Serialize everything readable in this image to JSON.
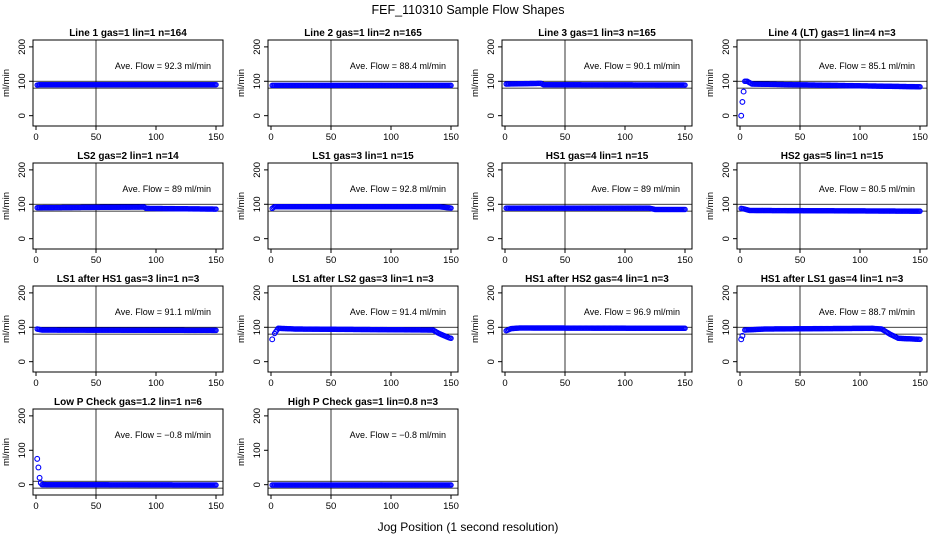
{
  "figure": {
    "title": "FEF_110310  Sample Flow Shapes",
    "xlabel": "Jog Position (1 second resolution)",
    "ylabel": "ml/min"
  },
  "chart_data": [
    {
      "type": "scatter",
      "title": "Line 1 gas=1 lin=1 n=164",
      "annotation": "Ave. Flow =  92.3  ml/min",
      "xlim": [
        0,
        150
      ],
      "ylim": [
        -30,
        220
      ],
      "xticks": [
        "0",
        "50",
        "100",
        "150"
      ],
      "yticks": [
        "0",
        "100",
        "200"
      ],
      "ref_lines_y": [
        80,
        100
      ],
      "ref_line_x": 50,
      "profile": [
        [
          1,
          89
        ],
        [
          3,
          90
        ],
        [
          150,
          90
        ]
      ]
    },
    {
      "type": "scatter",
      "title": "Line 2 gas=1 lin=2 n=165",
      "annotation": "Ave. Flow =  88.4  ml/min",
      "xlim": [
        0,
        150
      ],
      "ylim": [
        -30,
        220
      ],
      "xticks": [
        "0",
        "50",
        "100",
        "150"
      ],
      "yticks": [
        "0",
        "100",
        "200"
      ],
      "ref_lines_y": [
        80,
        100
      ],
      "ref_line_x": 50,
      "profile": [
        [
          1,
          88
        ],
        [
          150,
          88
        ]
      ]
    },
    {
      "type": "scatter",
      "title": "Line 3 gas=1 lin=3 n=165",
      "annotation": "Ave. Flow =  90.1  ml/min",
      "xlim": [
        0,
        150
      ],
      "ylim": [
        -30,
        220
      ],
      "xticks": [
        "0",
        "50",
        "100",
        "150"
      ],
      "yticks": [
        "0",
        "100",
        "200"
      ],
      "ref_lines_y": [
        80,
        100
      ],
      "ref_line_x": 50,
      "profile": [
        [
          1,
          92
        ],
        [
          30,
          94
        ],
        [
          32,
          90
        ],
        [
          150,
          89
        ]
      ]
    },
    {
      "type": "scatter",
      "title": "Line 4 (LT) gas=1 lin=4 n=3",
      "annotation": "Ave. Flow =  85.1  ml/min",
      "xlim": [
        0,
        150
      ],
      "ylim": [
        -30,
        220
      ],
      "xticks": [
        "0",
        "50",
        "100",
        "150"
      ],
      "yticks": [
        "0",
        "100",
        "200"
      ],
      "ref_lines_y": [
        80,
        100
      ],
      "ref_line_x": 50,
      "outliers": [
        [
          1,
          0
        ],
        [
          2,
          40
        ],
        [
          3,
          70
        ]
      ],
      "profile": [
        [
          4,
          100
        ],
        [
          6,
          100
        ],
        [
          10,
          92
        ],
        [
          150,
          84
        ]
      ]
    },
    {
      "type": "scatter",
      "title": "LS2 gas=2 lin=1 n=14",
      "annotation": "Ave. Flow =  89  ml/min",
      "xlim": [
        0,
        150
      ],
      "ylim": [
        -30,
        220
      ],
      "xticks": [
        "0",
        "50",
        "100",
        "150"
      ],
      "yticks": [
        "0",
        "100",
        "200"
      ],
      "ref_lines_y": [
        80,
        100
      ],
      "ref_line_x": 50,
      "profile": [
        [
          1,
          90
        ],
        [
          90,
          92
        ],
        [
          92,
          88
        ],
        [
          150,
          86
        ]
      ]
    },
    {
      "type": "scatter",
      "title": "LS1 gas=3 lin=1 n=15",
      "annotation": "Ave. Flow =  92.8  ml/min",
      "xlim": [
        0,
        150
      ],
      "ylim": [
        -30,
        220
      ],
      "xticks": [
        "0",
        "50",
        "100",
        "150"
      ],
      "yticks": [
        "0",
        "100",
        "200"
      ],
      "ref_lines_y": [
        80,
        100
      ],
      "ref_line_x": 50,
      "profile": [
        [
          1,
          88
        ],
        [
          3,
          93
        ],
        [
          140,
          93
        ],
        [
          150,
          89
        ]
      ]
    },
    {
      "type": "scatter",
      "title": "HS1 gas=4 lin=1 n=15",
      "annotation": "Ave. Flow =  89  ml/min",
      "xlim": [
        0,
        150
      ],
      "ylim": [
        -30,
        220
      ],
      "xticks": [
        "0",
        "50",
        "100",
        "150"
      ],
      "yticks": [
        "0",
        "100",
        "200"
      ],
      "ref_lines_y": [
        80,
        100
      ],
      "ref_line_x": 50,
      "profile": [
        [
          1,
          89
        ],
        [
          120,
          89
        ],
        [
          125,
          85
        ],
        [
          150,
          85
        ]
      ]
    },
    {
      "type": "scatter",
      "title": "HS2 gas=5 lin=1 n=15",
      "annotation": "Ave. Flow =  80.5  ml/min",
      "xlim": [
        0,
        150
      ],
      "ylim": [
        -30,
        220
      ],
      "xticks": [
        "0",
        "50",
        "100",
        "150"
      ],
      "yticks": [
        "0",
        "100",
        "200"
      ],
      "ref_lines_y": [
        80,
        100
      ],
      "ref_line_x": 50,
      "profile": [
        [
          1,
          88
        ],
        [
          4,
          86
        ],
        [
          8,
          82
        ],
        [
          150,
          80
        ]
      ]
    },
    {
      "type": "scatter",
      "title": "LS1 after HS1 gas=3 lin=1 n=3",
      "annotation": "Ave. Flow =  91.1  ml/min",
      "xlim": [
        0,
        150
      ],
      "ylim": [
        -30,
        220
      ],
      "xticks": [
        "0",
        "50",
        "100",
        "150"
      ],
      "yticks": [
        "0",
        "100",
        "200"
      ],
      "ref_lines_y": [
        80,
        100
      ],
      "ref_line_x": 50,
      "profile": [
        [
          1,
          95
        ],
        [
          5,
          92
        ],
        [
          150,
          91
        ]
      ]
    },
    {
      "type": "scatter",
      "title": "LS1 after LS2 gas=3 lin=1 n=3",
      "annotation": "Ave. Flow =  91.4  ml/min",
      "xlim": [
        0,
        150
      ],
      "ylim": [
        -30,
        220
      ],
      "xticks": [
        "0",
        "50",
        "100",
        "150"
      ],
      "yticks": [
        "0",
        "100",
        "200"
      ],
      "ref_lines_y": [
        80,
        100
      ],
      "ref_line_x": 50,
      "outliers": [
        [
          1,
          65
        ]
      ],
      "profile": [
        [
          3,
          82
        ],
        [
          6,
          97
        ],
        [
          20,
          95
        ],
        [
          135,
          92
        ],
        [
          140,
          82
        ],
        [
          148,
          70
        ],
        [
          150,
          68
        ]
      ]
    },
    {
      "type": "scatter",
      "title": "HS1 after HS2 gas=4 lin=1 n=3",
      "annotation": "Ave. Flow =  96.9  ml/min",
      "xlim": [
        0,
        150
      ],
      "ylim": [
        -30,
        220
      ],
      "xticks": [
        "0",
        "50",
        "100",
        "150"
      ],
      "yticks": [
        "0",
        "100",
        "200"
      ],
      "ref_lines_y": [
        80,
        100
      ],
      "ref_line_x": 50,
      "profile": [
        [
          1,
          90
        ],
        [
          5,
          96
        ],
        [
          12,
          98
        ],
        [
          150,
          97
        ]
      ]
    },
    {
      "type": "scatter",
      "title": "HS1 after LS1 gas=4 lin=1 n=3",
      "annotation": "Ave. Flow =  88.7  ml/min",
      "xlim": [
        0,
        150
      ],
      "ylim": [
        -30,
        220
      ],
      "xticks": [
        "0",
        "50",
        "100",
        "150"
      ],
      "yticks": [
        "0",
        "100",
        "200"
      ],
      "ref_lines_y": [
        80,
        100
      ],
      "ref_line_x": 50,
      "outliers": [
        [
          1,
          65
        ],
        [
          2,
          75
        ]
      ],
      "profile": [
        [
          4,
          92
        ],
        [
          20,
          95
        ],
        [
          110,
          97
        ],
        [
          118,
          95
        ],
        [
          125,
          80
        ],
        [
          132,
          68
        ],
        [
          150,
          65
        ]
      ]
    },
    {
      "type": "scatter",
      "title": "Low P Check gas=1.2 lin=1 n=6",
      "annotation": "Ave. Flow =  −0.8  ml/min",
      "xlim": [
        0,
        150
      ],
      "ylim": [
        -30,
        220
      ],
      "xticks": [
        "0",
        "50",
        "100",
        "150"
      ],
      "yticks": [
        "0",
        "100",
        "200"
      ],
      "ref_lines_y": [
        -10,
        10
      ],
      "ref_line_x": 50,
      "outliers": [
        [
          1,
          75
        ],
        [
          2,
          50
        ],
        [
          3,
          20
        ],
        [
          4,
          5
        ]
      ],
      "profile": [
        [
          5,
          0
        ],
        [
          150,
          -1
        ]
      ]
    },
    {
      "type": "scatter",
      "title": "High P Check gas=1 lin=0.8 n=3",
      "annotation": "Ave. Flow =  −0.8  ml/min",
      "xlim": [
        0,
        150
      ],
      "ylim": [
        -30,
        220
      ],
      "xticks": [
        "0",
        "50",
        "100",
        "150"
      ],
      "yticks": [
        "0",
        "100",
        "200"
      ],
      "ref_lines_y": [
        -10,
        10
      ],
      "ref_line_x": 50,
      "profile": [
        [
          1,
          -1
        ],
        [
          150,
          -1
        ]
      ]
    }
  ]
}
